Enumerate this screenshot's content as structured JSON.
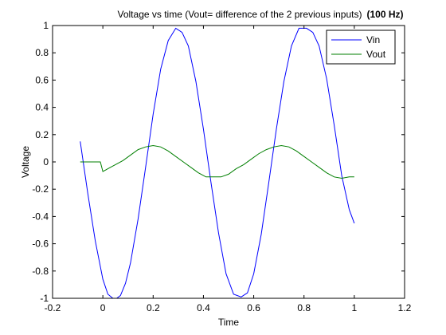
{
  "chart_data": {
    "type": "line",
    "title": "Voltage vs time (Vout= difference of the 2 previous inputs)",
    "title_bold": "(100 Hz)",
    "xlabel": "Time",
    "ylabel": "Voltage",
    "xlim": [
      -0.2,
      1.2
    ],
    "ylim": [
      -1,
      1
    ],
    "xticks": [
      "-0.2",
      "0",
      "0.2",
      "0.4",
      "0.6",
      "0.8",
      "1",
      "1.2"
    ],
    "yticks": [
      "-1",
      "-0.8",
      "-0.6",
      "-0.4",
      "-0.2",
      "0",
      "0.2",
      "0.4",
      "0.6",
      "0.8",
      "1"
    ],
    "grid": false,
    "legend_position": "top-right",
    "series": [
      {
        "name": "Vin",
        "color": "#0000ff",
        "x": [
          -0.09,
          -0.06,
          -0.03,
          0.0,
          0.02,
          0.04,
          0.055,
          0.07,
          0.09,
          0.11,
          0.14,
          0.17,
          0.2,
          0.23,
          0.26,
          0.29,
          0.315,
          0.34,
          0.37,
          0.4,
          0.43,
          0.46,
          0.49,
          0.52,
          0.55,
          0.575,
          0.6,
          0.63,
          0.66,
          0.69,
          0.72,
          0.75,
          0.78,
          0.81,
          0.835,
          0.86,
          0.89,
          0.92,
          0.95,
          0.98,
          1.0
        ],
        "y": [
          0.15,
          -0.23,
          -0.58,
          -0.86,
          -0.97,
          -1.0,
          -1.0,
          -0.98,
          -0.89,
          -0.74,
          -0.42,
          -0.04,
          0.35,
          0.68,
          0.89,
          0.98,
          0.95,
          0.85,
          0.59,
          0.24,
          -0.15,
          -0.52,
          -0.82,
          -0.97,
          -0.99,
          -0.96,
          -0.82,
          -0.53,
          -0.15,
          0.24,
          0.59,
          0.85,
          0.98,
          0.98,
          0.95,
          0.85,
          0.61,
          0.27,
          -0.1,
          -0.35,
          -0.45
        ]
      },
      {
        "name": "Vout",
        "color": "#007f00",
        "x": [
          -0.09,
          -0.05,
          -0.01,
          0.0,
          0.01,
          0.03,
          0.05,
          0.08,
          0.11,
          0.14,
          0.17,
          0.2,
          0.23,
          0.26,
          0.29,
          0.32,
          0.35,
          0.38,
          0.41,
          0.44,
          0.47,
          0.5,
          0.53,
          0.56,
          0.59,
          0.62,
          0.65,
          0.68,
          0.71,
          0.74,
          0.77,
          0.8,
          0.83,
          0.86,
          0.89,
          0.92,
          0.95,
          0.98,
          1.0
        ],
        "y": [
          0.0,
          0.0,
          0.0,
          -0.07,
          -0.06,
          -0.04,
          -0.02,
          0.01,
          0.05,
          0.09,
          0.11,
          0.12,
          0.11,
          0.08,
          0.04,
          0.0,
          -0.04,
          -0.08,
          -0.11,
          -0.11,
          -0.11,
          -0.09,
          -0.05,
          -0.02,
          0.02,
          0.06,
          0.09,
          0.11,
          0.12,
          0.11,
          0.08,
          0.04,
          0.0,
          -0.04,
          -0.08,
          -0.11,
          -0.12,
          -0.11,
          -0.11
        ]
      }
    ]
  }
}
